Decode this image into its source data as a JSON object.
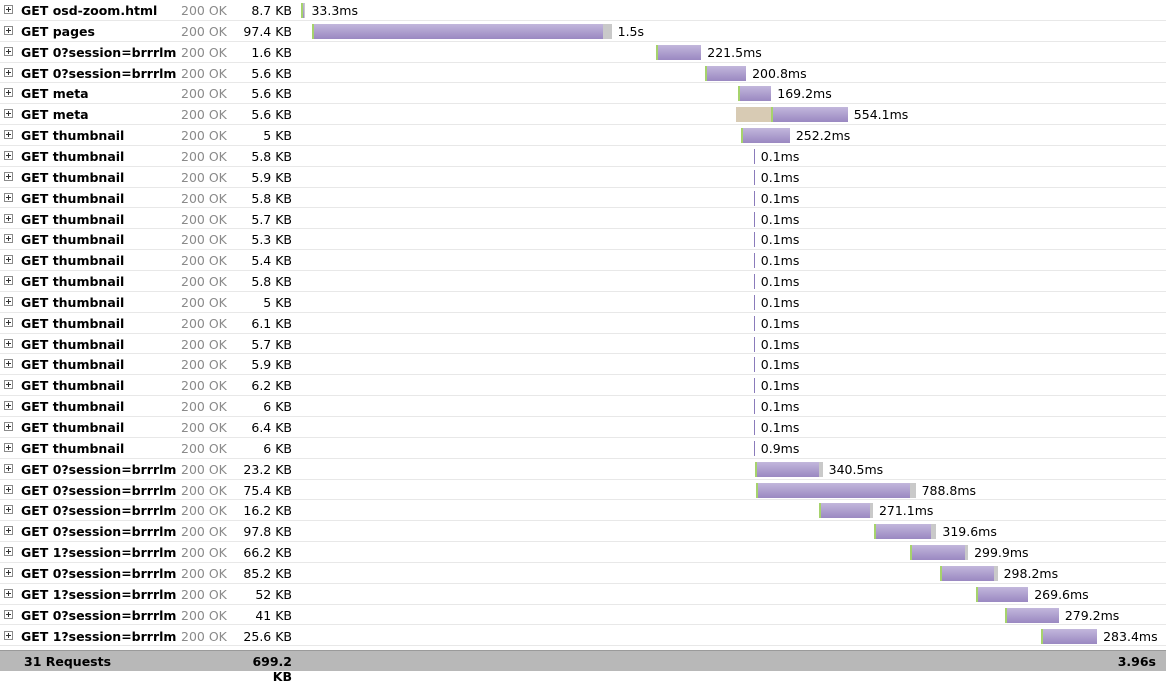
{
  "timeline_total_ms": 3960,
  "colors": {
    "receive": "#9a88c1",
    "waiting": "#d8cbb4",
    "connecting": "#a6d36c",
    "rest": "#c9c9c9"
  },
  "icons": {
    "expand": "plus-box-icon"
  },
  "requests": [
    {
      "method": "GET",
      "url": "osd-zoom.html",
      "status": "200 OK",
      "size": "8.7 KB",
      "time": "33.3ms",
      "start_ms": 5,
      "wait_ms": 0,
      "duration_ms": 12,
      "rest_ms": 8
    },
    {
      "method": "GET",
      "url": "pages",
      "status": "200 OK",
      "size": "97.4 KB",
      "time": "1.5s",
      "start_ms": 55,
      "wait_ms": 0,
      "duration_ms": 1330,
      "rest_ms": 40
    },
    {
      "method": "GET",
      "url": "0?session=brrrlm",
      "status": "200 OK",
      "size": "1.6 KB",
      "time": "221.5ms",
      "start_ms": 1630,
      "wait_ms": 0,
      "duration_ms": 205,
      "rest_ms": 0
    },
    {
      "method": "GET",
      "url": "0?session=brrrlm",
      "status": "200 OK",
      "size": "5.6 KB",
      "time": "200.8ms",
      "start_ms": 1850,
      "wait_ms": 0,
      "duration_ms": 190,
      "rest_ms": 0
    },
    {
      "method": "GET",
      "url": "meta",
      "status": "200 OK",
      "size": "5.6 KB",
      "time": "169.2ms",
      "start_ms": 2005,
      "wait_ms": 0,
      "duration_ms": 150,
      "rest_ms": 0
    },
    {
      "method": "GET",
      "url": "meta",
      "status": "200 OK",
      "size": "5.6 KB",
      "time": "554.1ms",
      "start_ms": 1995,
      "wait_ms": 160,
      "duration_ms": 350,
      "rest_ms": 0
    },
    {
      "method": "GET",
      "url": "thumbnail",
      "status": "200 OK",
      "size": "5 KB",
      "time": "252.2ms",
      "start_ms": 2015,
      "wait_ms": 0,
      "duration_ms": 225,
      "rest_ms": 0
    },
    {
      "method": "GET",
      "url": "thumbnail",
      "status": "200 OK",
      "size": "5.8 KB",
      "time": "0.1ms",
      "start_ms": 2075,
      "wait_ms": 0,
      "duration_ms": 1,
      "rest_ms": 0
    },
    {
      "method": "GET",
      "url": "thumbnail",
      "status": "200 OK",
      "size": "5.9 KB",
      "time": "0.1ms",
      "start_ms": 2075,
      "wait_ms": 0,
      "duration_ms": 1,
      "rest_ms": 0
    },
    {
      "method": "GET",
      "url": "thumbnail",
      "status": "200 OK",
      "size": "5.8 KB",
      "time": "0.1ms",
      "start_ms": 2075,
      "wait_ms": 0,
      "duration_ms": 1,
      "rest_ms": 0
    },
    {
      "method": "GET",
      "url": "thumbnail",
      "status": "200 OK",
      "size": "5.7 KB",
      "time": "0.1ms",
      "start_ms": 2075,
      "wait_ms": 0,
      "duration_ms": 1,
      "rest_ms": 0
    },
    {
      "method": "GET",
      "url": "thumbnail",
      "status": "200 OK",
      "size": "5.3 KB",
      "time": "0.1ms",
      "start_ms": 2075,
      "wait_ms": 0,
      "duration_ms": 1,
      "rest_ms": 0
    },
    {
      "method": "GET",
      "url": "thumbnail",
      "status": "200 OK",
      "size": "5.4 KB",
      "time": "0.1ms",
      "start_ms": 2075,
      "wait_ms": 0,
      "duration_ms": 1,
      "rest_ms": 0
    },
    {
      "method": "GET",
      "url": "thumbnail",
      "status": "200 OK",
      "size": "5.8 KB",
      "time": "0.1ms",
      "start_ms": 2075,
      "wait_ms": 0,
      "duration_ms": 1,
      "rest_ms": 0
    },
    {
      "method": "GET",
      "url": "thumbnail",
      "status": "200 OK",
      "size": "5 KB",
      "time": "0.1ms",
      "start_ms": 2075,
      "wait_ms": 0,
      "duration_ms": 1,
      "rest_ms": 0
    },
    {
      "method": "GET",
      "url": "thumbnail",
      "status": "200 OK",
      "size": "6.1 KB",
      "time": "0.1ms",
      "start_ms": 2075,
      "wait_ms": 0,
      "duration_ms": 1,
      "rest_ms": 0
    },
    {
      "method": "GET",
      "url": "thumbnail",
      "status": "200 OK",
      "size": "5.7 KB",
      "time": "0.1ms",
      "start_ms": 2075,
      "wait_ms": 0,
      "duration_ms": 1,
      "rest_ms": 0
    },
    {
      "method": "GET",
      "url": "thumbnail",
      "status": "200 OK",
      "size": "5.9 KB",
      "time": "0.1ms",
      "start_ms": 2075,
      "wait_ms": 0,
      "duration_ms": 1,
      "rest_ms": 0
    },
    {
      "method": "GET",
      "url": "thumbnail",
      "status": "200 OK",
      "size": "6.2 KB",
      "time": "0.1ms",
      "start_ms": 2075,
      "wait_ms": 0,
      "duration_ms": 1,
      "rest_ms": 0
    },
    {
      "method": "GET",
      "url": "thumbnail",
      "status": "200 OK",
      "size": "6 KB",
      "time": "0.1ms",
      "start_ms": 2075,
      "wait_ms": 0,
      "duration_ms": 1,
      "rest_ms": 0
    },
    {
      "method": "GET",
      "url": "thumbnail",
      "status": "200 OK",
      "size": "6.4 KB",
      "time": "0.1ms",
      "start_ms": 2075,
      "wait_ms": 0,
      "duration_ms": 1,
      "rest_ms": 0
    },
    {
      "method": "GET",
      "url": "thumbnail",
      "status": "200 OK",
      "size": "6 KB",
      "time": "0.9ms",
      "start_ms": 2075,
      "wait_ms": 0,
      "duration_ms": 1,
      "rest_ms": 0
    },
    {
      "method": "GET",
      "url": "0?session=brrrlm",
      "status": "200 OK",
      "size": "23.2 KB",
      "time": "340.5ms",
      "start_ms": 2080,
      "wait_ms": 0,
      "duration_ms": 295,
      "rest_ms": 15
    },
    {
      "method": "GET",
      "url": "0?session=brrrlm",
      "status": "200 OK",
      "size": "75.4 KB",
      "time": "788.8ms",
      "start_ms": 2085,
      "wait_ms": 0,
      "duration_ms": 705,
      "rest_ms": 25
    },
    {
      "method": "GET",
      "url": "0?session=brrrlm",
      "status": "200 OK",
      "size": "16.2 KB",
      "time": "271.1ms",
      "start_ms": 2375,
      "wait_ms": 0,
      "duration_ms": 230,
      "rest_ms": 15
    },
    {
      "method": "GET",
      "url": "0?session=brrrlm",
      "status": "200 OK",
      "size": "97.8 KB",
      "time": "319.6ms",
      "start_ms": 2625,
      "wait_ms": 0,
      "duration_ms": 260,
      "rest_ms": 25
    },
    {
      "method": "GET",
      "url": "1?session=brrrlm",
      "status": "200 OK",
      "size": "66.2 KB",
      "time": "299.9ms",
      "start_ms": 2790,
      "wait_ms": 0,
      "duration_ms": 250,
      "rest_ms": 15
    },
    {
      "method": "GET",
      "url": "0?session=brrrlm",
      "status": "200 OK",
      "size": "85.2 KB",
      "time": "298.2ms",
      "start_ms": 2925,
      "wait_ms": 0,
      "duration_ms": 250,
      "rest_ms": 15
    },
    {
      "method": "GET",
      "url": "1?session=brrrlm",
      "status": "200 OK",
      "size": "52 KB",
      "time": "269.6ms",
      "start_ms": 3090,
      "wait_ms": 0,
      "duration_ms": 240,
      "rest_ms": 0
    },
    {
      "method": "GET",
      "url": "0?session=brrrlm",
      "status": "200 OK",
      "size": "41 KB",
      "time": "279.2ms",
      "start_ms": 3225,
      "wait_ms": 0,
      "duration_ms": 245,
      "rest_ms": 0
    },
    {
      "method": "GET",
      "url": "1?session=brrrlm",
      "status": "200 OK",
      "size": "25.6 KB",
      "time": "283.4ms",
      "start_ms": 3390,
      "wait_ms": 0,
      "duration_ms": 255,
      "rest_ms": 0
    }
  ],
  "summary": {
    "requests_label": "31 Requests",
    "total_size": "699.2 KB",
    "total_time": "3.96s"
  }
}
